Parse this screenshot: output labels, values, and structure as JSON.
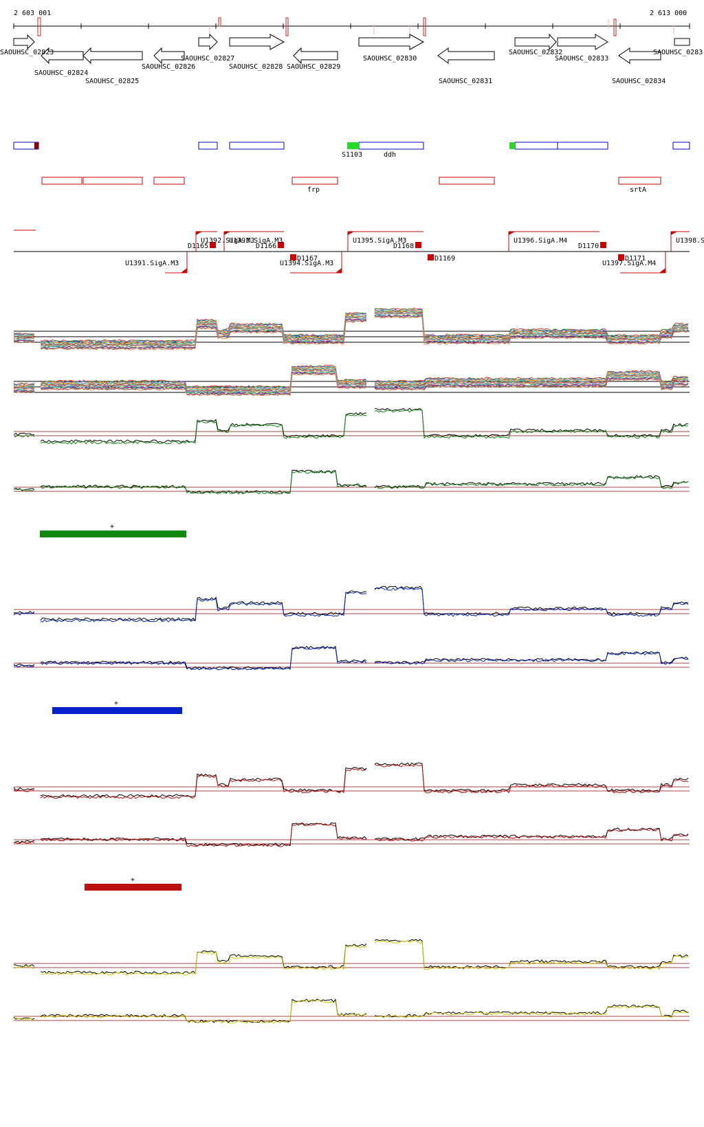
{
  "genome_browser": {
    "coords": {
      "start_label": "2 603 001",
      "end_label": "2 613 000"
    },
    "genes_forward": [
      "SAOUHSC_02823",
      "SAOUHSC_02827",
      "SAOUHSC_02828",
      "SAOUHSC_02830",
      "SAOUHSC_02832",
      "SAOUHSC_02833",
      "SAOUHSC_0283"
    ],
    "genes_reverse": [
      "SAOUHSC_02824",
      "SAOUHSC_02825",
      "SAOUHSC_02826",
      "SAOUHSC_02829",
      "SAOUHSC_02831",
      "SAOUHSC_02834"
    ],
    "blue_track_labels": [
      "S1103",
      "ddh"
    ],
    "red_track_labels": [
      "frp",
      "srtA"
    ],
    "promoters_top": [
      "U1392.SigA.M3",
      "U1393.SigA.M3",
      "U1395.SigA.M3",
      "U1396.SigA.M4",
      "U1398.S"
    ],
    "promoters_bottom": [
      "U1391.SigA.M3",
      "U1394.SigA.M3",
      "U1397.SigA.M4"
    ],
    "terminators": [
      "D1165",
      "D1166",
      "D1167",
      "D1168",
      "D1169",
      "D1170",
      "D1171"
    ],
    "cluster_marks": [
      "+",
      "+",
      "+"
    ],
    "colors": {
      "gene_outline": "#000000",
      "blue_track": "#0000cc",
      "red_track": "#cc0000",
      "highlight_green": "#22dd22",
      "dark_red": "#880000",
      "green_condition": "#118811",
      "blue_condition": "#0022cc",
      "red_condition": "#bb1111",
      "yellow_condition": "#cccc00",
      "reference_line": "#aa4444"
    }
  }
}
